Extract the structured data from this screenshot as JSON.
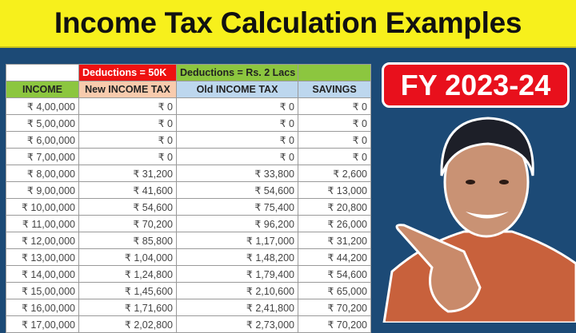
{
  "title": "Income Tax Calculation Examples",
  "badge": "FY 2023-24",
  "table": {
    "group_headers": [
      "",
      "Deductions = 50K",
      "Deductions = Rs. 2 Lacs",
      ""
    ],
    "columns": [
      "INCOME",
      "New INCOME TAX",
      "Old INCOME TAX",
      "SAVINGS"
    ],
    "rows": [
      [
        "₹ 4,00,000",
        "₹ 0",
        "₹ 0",
        "₹ 0"
      ],
      [
        "₹ 5,00,000",
        "₹ 0",
        "₹ 0",
        "₹ 0"
      ],
      [
        "₹ 6,00,000",
        "₹ 0",
        "₹ 0",
        "₹ 0"
      ],
      [
        "₹ 7,00,000",
        "₹ 0",
        "₹ 0",
        "₹ 0"
      ],
      [
        "₹ 8,00,000",
        "₹ 31,200",
        "₹ 33,800",
        "₹ 2,600"
      ],
      [
        "₹ 9,00,000",
        "₹ 41,600",
        "₹ 54,600",
        "₹ 13,000"
      ],
      [
        "₹ 10,00,000",
        "₹ 54,600",
        "₹ 75,400",
        "₹ 20,800"
      ],
      [
        "₹ 11,00,000",
        "₹ 70,200",
        "₹ 96,200",
        "₹ 26,000"
      ],
      [
        "₹ 12,00,000",
        "₹ 85,800",
        "₹ 1,17,000",
        "₹ 31,200"
      ],
      [
        "₹ 13,00,000",
        "₹ 1,04,000",
        "₹ 1,48,200",
        "₹ 44,200"
      ],
      [
        "₹ 14,00,000",
        "₹ 1,24,800",
        "₹ 1,79,400",
        "₹ 54,600"
      ],
      [
        "₹ 15,00,000",
        "₹ 1,45,600",
        "₹ 2,10,600",
        "₹ 65,000"
      ],
      [
        "₹ 16,00,000",
        "₹ 1,71,600",
        "₹ 2,41,800",
        "₹ 70,200"
      ],
      [
        "₹ 17,00,000",
        "₹ 2,02,800",
        "₹ 2,73,000",
        "₹ 70,200"
      ]
    ]
  },
  "colors": {
    "banner": "#f7f01c",
    "background": "#1c4a76",
    "badge": "#e8101c",
    "group_red": "#ee1111",
    "group_green": "#8cc63f",
    "new_tax_header": "#f8cbad",
    "old_tax_header": "#bdd7ee"
  }
}
